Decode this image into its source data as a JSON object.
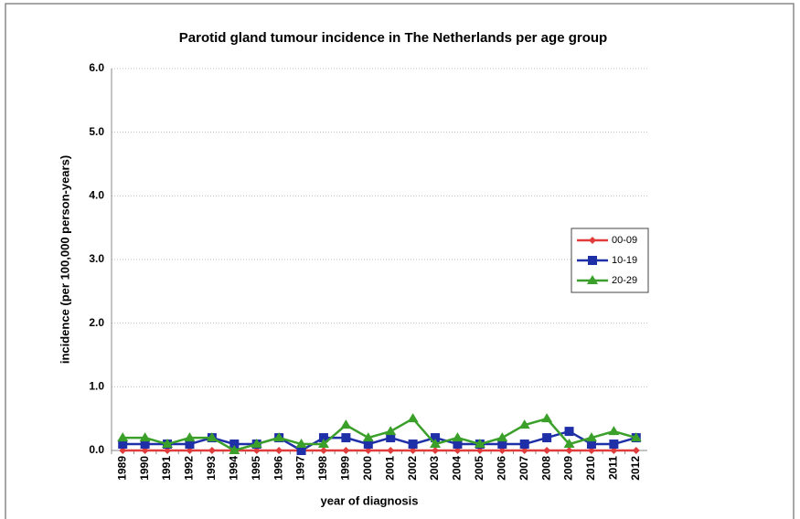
{
  "chart_data": {
    "type": "line",
    "title": "Parotid gland tumour incidence in The Netherlands per age group",
    "x_label": "year of diagnosis",
    "y_label": "incidence (per 100,000 person-years)",
    "categories": [
      "1989",
      "1990",
      "1991",
      "1992",
      "1993",
      "1994",
      "1995",
      "1996",
      "1997",
      "1998",
      "1999",
      "2000",
      "2001",
      "2002",
      "2003",
      "2004",
      "2005",
      "2006",
      "2007",
      "2008",
      "2009",
      "2010",
      "2011",
      "2012"
    ],
    "series": [
      {
        "name": "00-09",
        "color": "#e03c3c",
        "marker": "diamond",
        "values": [
          0,
          0,
          0,
          0,
          0,
          0,
          0,
          0,
          0,
          0,
          0,
          0,
          0,
          0,
          0,
          0,
          0,
          0,
          0,
          0,
          0,
          0,
          0,
          0
        ]
      },
      {
        "name": "10-19",
        "color": "#1f2fa8",
        "marker": "square",
        "values": [
          0.1,
          0.1,
          0.1,
          0.1,
          0.2,
          0.1,
          0.1,
          0.2,
          0.0,
          0.2,
          0.2,
          0.1,
          0.2,
          0.1,
          0.2,
          0.1,
          0.1,
          0.1,
          0.1,
          0.2,
          0.3,
          0.1,
          0.1,
          0.2
        ]
      },
      {
        "name": "20-29",
        "color": "#3aa02a",
        "marker": "triangle",
        "values": [
          0.2,
          0.2,
          0.1,
          0.2,
          0.2,
          0.0,
          0.1,
          0.2,
          0.1,
          0.1,
          0.4,
          0.2,
          0.3,
          0.5,
          0.1,
          0.2,
          0.1,
          0.2,
          0.4,
          0.5,
          0.1,
          0.2,
          0.3,
          0.2
        ]
      }
    ],
    "ylim": [
      0,
      6
    ],
    "yticks": [
      {
        "value": 0,
        "label": "0.0"
      },
      {
        "value": 1,
        "label": "1.0"
      },
      {
        "value": 2,
        "label": "2.0"
      },
      {
        "value": 3,
        "label": "3.0"
      },
      {
        "value": 4,
        "label": "4.0"
      },
      {
        "value": 5,
        "label": "5.0"
      },
      {
        "value": 6,
        "label": "6.0"
      }
    ],
    "grid": true,
    "legend": "right"
  }
}
